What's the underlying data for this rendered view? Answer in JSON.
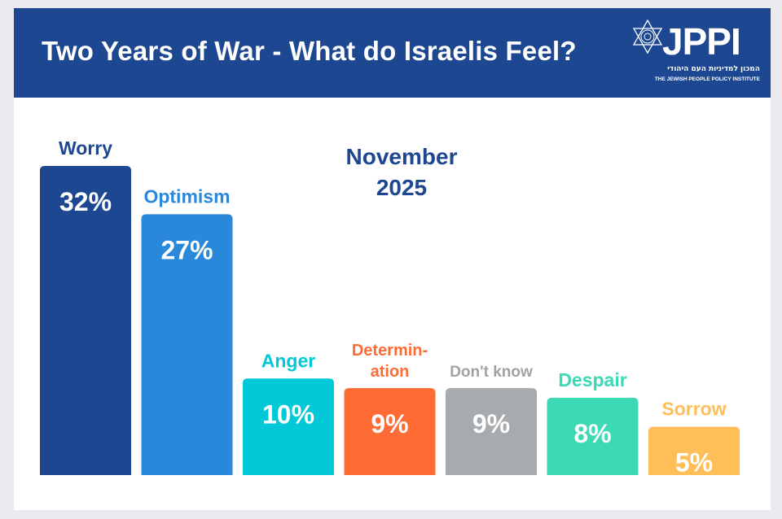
{
  "header": {
    "title": "Two Years of War - What do Israelis Feel?",
    "logo_text": "JPPI",
    "logo_hebrew": "המכון למדיניות העם היהודי",
    "logo_english": "THE JEWISH PEOPLE POLICY INSTITUTE"
  },
  "colors": {
    "header_bg": "#1d4790",
    "page_bg": "#ebe9ee",
    "title_text": "#ffffff"
  },
  "chart_data": {
    "type": "bar",
    "title": "Two Years of War - What do Israelis Feel?",
    "subtitle": "November 2025",
    "subtitle_lines": [
      "November",
      "2025"
    ],
    "xlabel": "",
    "ylabel": "",
    "ylim": [
      0,
      32
    ],
    "grid": false,
    "unit": "%",
    "categories": [
      "Worry",
      "Optimism",
      "Anger",
      "Determination",
      "Don't know",
      "Despair",
      "Sorrow"
    ],
    "category_label_lines": [
      [
        "Worry"
      ],
      [
        "Optimism"
      ],
      [
        "Anger"
      ],
      [
        "Determin-",
        "ation"
      ],
      [
        "Don't know"
      ],
      [
        "Despair"
      ],
      [
        "Sorrow"
      ]
    ],
    "values": [
      32,
      27,
      10,
      9,
      9,
      8,
      5
    ],
    "value_labels": [
      "32%",
      "27%",
      "10%",
      "9%",
      "9%",
      "8%",
      "5%"
    ],
    "bar_colors": [
      "#1d4790",
      "#2a88da",
      "#03c8d7",
      "#fe6b34",
      "#a8abad",
      "#3bd9b4",
      "#ffbe57"
    ],
    "label_colors": [
      "#1d4790",
      "#2a88da",
      "#03c8d7",
      "#fe6b34",
      "#a0a2a4",
      "#3bd9b4",
      "#ffbe57"
    ]
  }
}
